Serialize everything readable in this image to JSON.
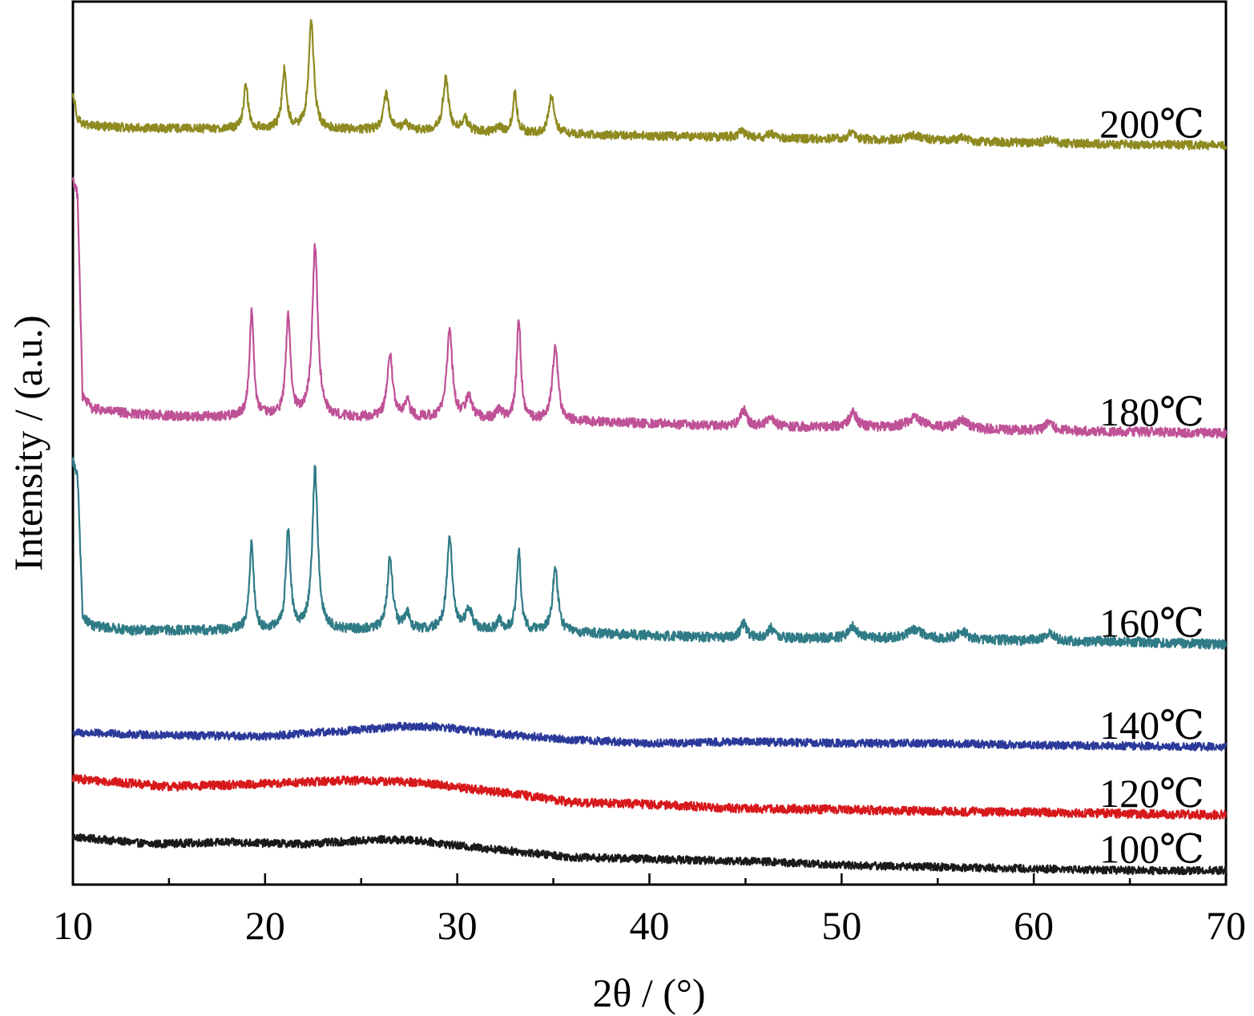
{
  "chart_data": {
    "type": "line",
    "xlabel": "2θ / (°)",
    "ylabel": "Intensity / (a.u.)",
    "xlim": [
      10,
      70
    ],
    "ylim": [
      0,
      100
    ],
    "x_ticks": [
      10,
      20,
      30,
      40,
      50,
      60,
      70
    ],
    "x_minor_ticks": [
      15,
      25,
      35,
      45,
      55,
      65
    ],
    "grid": false,
    "y_tick_labels": false,
    "series": [
      {
        "name": "100℃",
        "color": "#1a1a1a",
        "noise": 0.45,
        "points": [
          [
            10,
            5.4
          ],
          [
            14,
            4.6
          ],
          [
            18,
            4.8
          ],
          [
            22,
            4.6
          ],
          [
            26,
            5.1
          ],
          [
            28,
            5.0
          ],
          [
            30,
            4.4
          ],
          [
            32,
            4.0
          ],
          [
            36,
            3.1
          ],
          [
            40,
            2.9
          ],
          [
            46,
            2.6
          ],
          [
            50,
            2.2
          ],
          [
            55,
            2.0
          ],
          [
            60,
            1.8
          ],
          [
            65,
            1.6
          ],
          [
            70,
            1.6
          ]
        ],
        "peaks": []
      },
      {
        "name": "120℃",
        "color": "#d7191c",
        "noise": 0.5,
        "points": [
          [
            10,
            12.0
          ],
          [
            15,
            11.1
          ],
          [
            20,
            11.4
          ],
          [
            24,
            11.8
          ],
          [
            28,
            11.6
          ],
          [
            30,
            11.0
          ],
          [
            33,
            10.3
          ],
          [
            36,
            9.3
          ],
          [
            40,
            9.1
          ],
          [
            45,
            8.6
          ],
          [
            50,
            8.5
          ],
          [
            55,
            8.3
          ],
          [
            60,
            8.2
          ],
          [
            65,
            8.0
          ],
          [
            70,
            7.9
          ]
        ],
        "peaks": []
      },
      {
        "name": "140℃",
        "color": "#2b3a9a",
        "noise": 0.45,
        "points": [
          [
            10,
            17.2
          ],
          [
            15,
            16.9
          ],
          [
            20,
            16.8
          ],
          [
            24,
            17.4
          ],
          [
            27,
            17.9
          ],
          [
            29,
            17.9
          ],
          [
            32,
            17.1
          ],
          [
            36,
            16.4
          ],
          [
            40,
            16.0
          ],
          [
            45,
            16.2
          ],
          [
            50,
            16.0
          ],
          [
            55,
            16.0
          ],
          [
            60,
            15.8
          ],
          [
            65,
            15.7
          ],
          [
            70,
            15.6
          ]
        ],
        "peaks": []
      },
      {
        "name": "160℃",
        "color": "#2f7b86",
        "noise": 0.55,
        "points": [
          [
            10,
            48.0
          ],
          [
            10.25,
            46.0
          ],
          [
            10.5,
            30.5
          ],
          [
            11,
            29.3
          ],
          [
            13,
            28.8
          ],
          [
            16,
            28.8
          ],
          [
            20,
            28.8
          ],
          [
            24,
            28.8
          ],
          [
            30,
            28.8
          ],
          [
            35,
            28.6
          ],
          [
            40,
            28.2
          ],
          [
            45,
            27.9
          ],
          [
            50,
            27.9
          ],
          [
            55,
            27.8
          ],
          [
            60,
            27.6
          ],
          [
            65,
            27.5
          ],
          [
            70,
            27.2
          ]
        ],
        "peaks": [
          [
            19.3,
            10.0,
            0.13
          ],
          [
            21.2,
            11.4,
            0.14
          ],
          [
            22.6,
            18.2,
            0.17
          ],
          [
            26.5,
            8.1,
            0.17
          ],
          [
            27.4,
            1.8,
            0.15
          ],
          [
            29.6,
            10.5,
            0.17
          ],
          [
            30.6,
            2.4,
            0.2
          ],
          [
            32.2,
            1.2,
            0.15
          ],
          [
            33.2,
            9.2,
            0.13
          ],
          [
            35.1,
            7.2,
            0.17
          ],
          [
            44.9,
            1.6,
            0.2
          ],
          [
            46.3,
            1.1,
            0.2
          ],
          [
            50.6,
            1.3,
            0.25
          ],
          [
            53.8,
            1.0,
            0.5
          ],
          [
            56.3,
            0.9,
            0.3
          ],
          [
            60.8,
            0.8,
            0.3
          ]
        ]
      },
      {
        "name": "180℃",
        "color": "#bf5197",
        "noise": 0.55,
        "points": [
          [
            10,
            80.0
          ],
          [
            10.25,
            78.0
          ],
          [
            10.5,
            55.3
          ],
          [
            11,
            53.9
          ],
          [
            13,
            53.3
          ],
          [
            16,
            53.0
          ],
          [
            20,
            53.0
          ],
          [
            24,
            52.9
          ],
          [
            30,
            52.8
          ],
          [
            35,
            52.5
          ],
          [
            40,
            52.2
          ],
          [
            45,
            51.9
          ],
          [
            50,
            51.8
          ],
          [
            55,
            51.7
          ],
          [
            60,
            51.4
          ],
          [
            65,
            51.3
          ],
          [
            70,
            51.1
          ]
        ],
        "peaks": [
          [
            19.3,
            12.0,
            0.13
          ],
          [
            21.2,
            11.5,
            0.14
          ],
          [
            22.6,
            19.5,
            0.17
          ],
          [
            26.5,
            7.0,
            0.17
          ],
          [
            27.4,
            1.8,
            0.15
          ],
          [
            29.6,
            10.0,
            0.17
          ],
          [
            30.6,
            2.3,
            0.2
          ],
          [
            32.2,
            1.1,
            0.15
          ],
          [
            33.2,
            11.3,
            0.13
          ],
          [
            35.1,
            8.5,
            0.17
          ],
          [
            44.9,
            1.8,
            0.2
          ],
          [
            46.3,
            1.1,
            0.2
          ],
          [
            50.6,
            1.6,
            0.25
          ],
          [
            53.8,
            1.1,
            0.5
          ],
          [
            56.3,
            1.0,
            0.3
          ],
          [
            60.8,
            0.8,
            0.3
          ]
        ]
      },
      {
        "name": "200℃",
        "color": "#8e8a20",
        "noise": 0.5,
        "points": [
          [
            10,
            89.5
          ],
          [
            10.25,
            86.8
          ],
          [
            10.6,
            86.0
          ],
          [
            13,
            85.7
          ],
          [
            16,
            85.6
          ],
          [
            20,
            85.6
          ],
          [
            24,
            85.5
          ],
          [
            30,
            85.3
          ],
          [
            35,
            85.0
          ],
          [
            40,
            84.8
          ],
          [
            45,
            84.6
          ],
          [
            50,
            84.4
          ],
          [
            55,
            84.2
          ],
          [
            60,
            84.0
          ],
          [
            65,
            83.8
          ],
          [
            70,
            83.7
          ]
        ],
        "peaks": [
          [
            19.0,
            5.2,
            0.13
          ],
          [
            21.0,
            6.6,
            0.14
          ],
          [
            22.4,
            12.4,
            0.16
          ],
          [
            26.3,
            4.1,
            0.17
          ],
          [
            27.3,
            0.9,
            0.15
          ],
          [
            29.4,
            6.0,
            0.17
          ],
          [
            30.4,
            1.4,
            0.2
          ],
          [
            32.2,
            0.6,
            0.15
          ],
          [
            33.0,
            4.6,
            0.13
          ],
          [
            34.9,
            4.2,
            0.17
          ],
          [
            44.8,
            0.8,
            0.2
          ],
          [
            46.3,
            0.5,
            0.2
          ],
          [
            50.5,
            0.7,
            0.25
          ],
          [
            53.8,
            0.6,
            0.5
          ],
          [
            56.3,
            0.5,
            0.3
          ],
          [
            60.8,
            0.4,
            0.3
          ]
        ]
      }
    ]
  }
}
